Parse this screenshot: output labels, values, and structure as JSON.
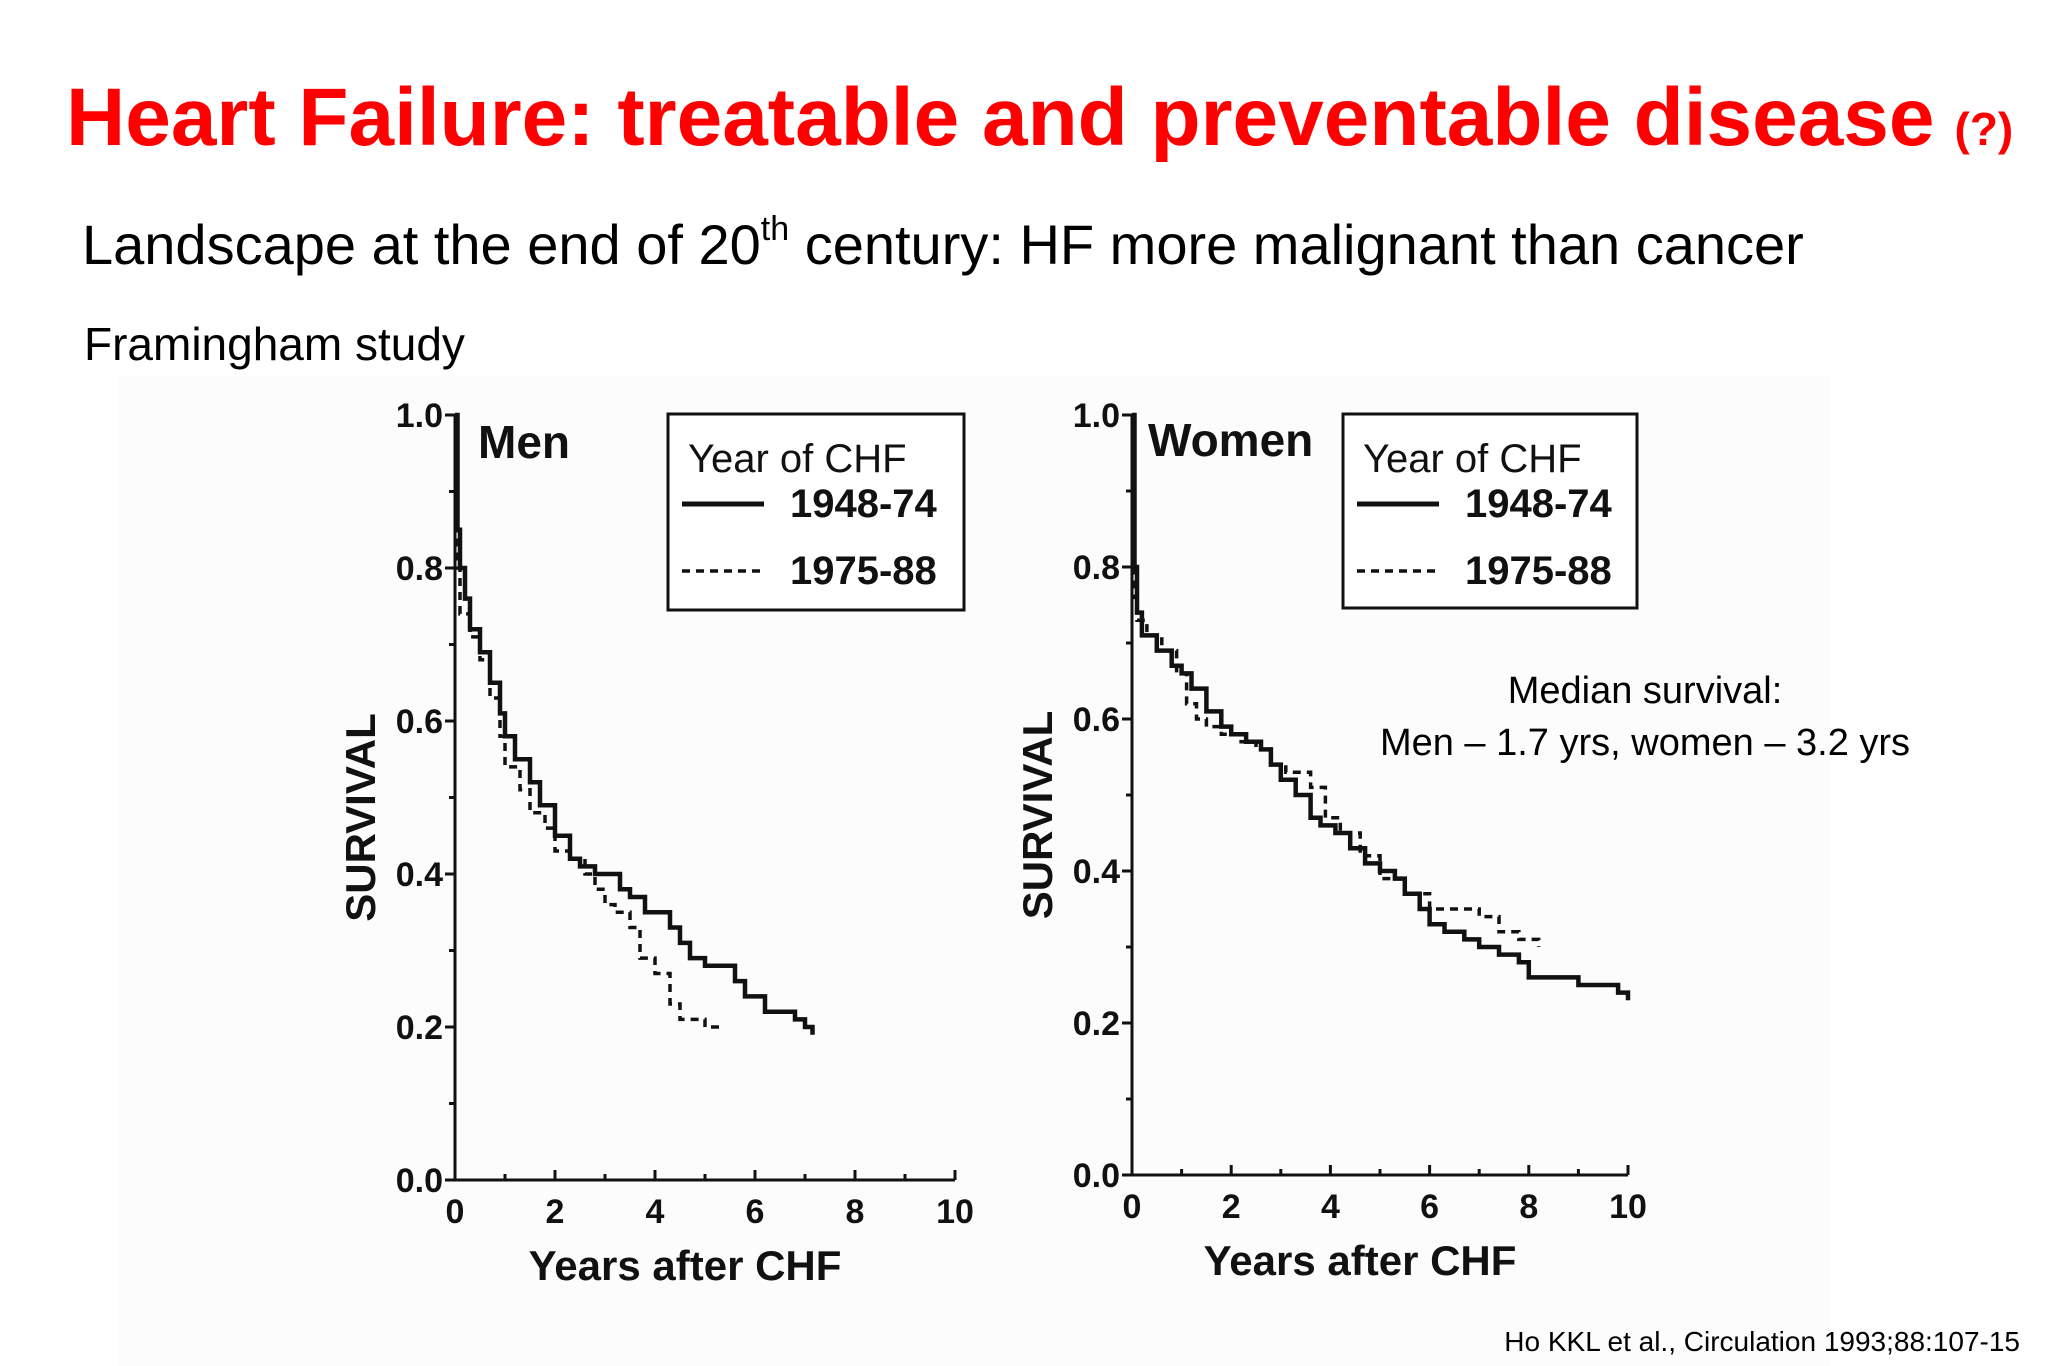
{
  "slide": {
    "title": "Heart Failure: treatable and preventable disease",
    "title_note": "(?)",
    "subtitle_pre": "Landscape at the end of 20",
    "subtitle_sup": "th",
    "subtitle_post": " century: HF more malignant than cancer",
    "study": "Framingham study",
    "median_line1": "Median survival:",
    "median_line2": "Men – 1.7 yrs, women – 3.2 yrs",
    "citation": "Ho KKL et al., Circulation 1993;88:107-15"
  },
  "colors": {
    "title": "#ff0000",
    "text": "#000000",
    "panel": "#fcfcfd",
    "line": "#111111"
  },
  "chart_data": [
    {
      "type": "line",
      "panel_label": "Men",
      "xlabel": "Years after CHF",
      "ylabel": "SURVIVAL",
      "xlim": [
        0,
        10
      ],
      "ylim": [
        0,
        1.0
      ],
      "x_ticks": [
        "0",
        "2",
        "4",
        "6",
        "8",
        "10"
      ],
      "y_ticks": [
        "0.0",
        "0.2",
        "0.4",
        "0.6",
        "0.8",
        "1.0"
      ],
      "legend": {
        "title": "Year of CHF",
        "position": "top-right"
      },
      "series": [
        {
          "name": "1948-74",
          "style": "solid",
          "x": [
            0,
            0.05,
            0.1,
            0.2,
            0.3,
            0.5,
            0.7,
            0.9,
            1.0,
            1.2,
            1.5,
            1.7,
            2.0,
            2.3,
            2.5,
            2.8,
            3.0,
            3.3,
            3.5,
            3.8,
            4.0,
            4.3,
            4.5,
            4.7,
            5.0,
            5.3,
            5.6,
            5.8,
            6.2,
            6.5,
            6.8,
            7.0,
            7.15
          ],
          "y": [
            1.0,
            0.85,
            0.8,
            0.76,
            0.72,
            0.69,
            0.65,
            0.61,
            0.58,
            0.55,
            0.52,
            0.49,
            0.45,
            0.42,
            0.41,
            0.4,
            0.4,
            0.38,
            0.37,
            0.35,
            0.35,
            0.33,
            0.31,
            0.29,
            0.28,
            0.28,
            0.26,
            0.24,
            0.22,
            0.22,
            0.21,
            0.2,
            0.19
          ]
        },
        {
          "name": "1975-88",
          "style": "dashed",
          "x": [
            0,
            0.05,
            0.1,
            0.3,
            0.5,
            0.7,
            0.9,
            1.0,
            1.3,
            1.5,
            1.8,
            2.0,
            2.3,
            2.6,
            2.8,
            3.0,
            3.2,
            3.5,
            3.7,
            4.0,
            4.3,
            4.5,
            4.7,
            5.0,
            5.3
          ],
          "y": [
            1.0,
            0.8,
            0.74,
            0.71,
            0.68,
            0.63,
            0.58,
            0.54,
            0.51,
            0.48,
            0.46,
            0.43,
            0.42,
            0.4,
            0.38,
            0.36,
            0.35,
            0.33,
            0.29,
            0.27,
            0.23,
            0.21,
            0.21,
            0.2,
            0.2
          ]
        }
      ]
    },
    {
      "type": "line",
      "panel_label": "Women",
      "xlabel": "Years after CHF",
      "ylabel": "SURVIVAL",
      "xlim": [
        0,
        10
      ],
      "ylim": [
        0,
        1.0
      ],
      "x_ticks": [
        "0",
        "2",
        "4",
        "6",
        "8",
        "10"
      ],
      "y_ticks": [
        "0.0",
        "0.2",
        "0.4",
        "0.6",
        "0.8",
        "1.0"
      ],
      "legend": {
        "title": "Year of CHF",
        "position": "top-right"
      },
      "series": [
        {
          "name": "1948-74",
          "style": "solid",
          "x": [
            0,
            0.05,
            0.1,
            0.2,
            0.5,
            0.8,
            1.0,
            1.2,
            1.5,
            1.8,
            2.0,
            2.3,
            2.6,
            2.8,
            3.0,
            3.3,
            3.6,
            3.8,
            4.1,
            4.4,
            4.7,
            5.0,
            5.3,
            5.5,
            5.8,
            6.0,
            6.3,
            6.7,
            7.0,
            7.4,
            7.8,
            8.0,
            8.5,
            9.0,
            9.5,
            9.8,
            10.0
          ],
          "y": [
            1.0,
            0.8,
            0.74,
            0.71,
            0.69,
            0.67,
            0.66,
            0.64,
            0.61,
            0.59,
            0.58,
            0.57,
            0.56,
            0.54,
            0.52,
            0.5,
            0.47,
            0.46,
            0.45,
            0.43,
            0.41,
            0.4,
            0.39,
            0.37,
            0.35,
            0.33,
            0.32,
            0.31,
            0.3,
            0.29,
            0.28,
            0.26,
            0.26,
            0.25,
            0.25,
            0.24,
            0.23
          ]
        },
        {
          "name": "1975-88",
          "style": "dashed",
          "x": [
            0,
            0.05,
            0.1,
            0.3,
            0.6,
            0.9,
            1.1,
            1.3,
            1.5,
            1.8,
            2.2,
            2.5,
            2.8,
            3.1,
            3.4,
            3.6,
            3.9,
            4.2,
            4.6,
            5.0,
            5.5,
            6.0,
            6.5,
            7.0,
            7.4,
            7.8,
            8.2
          ],
          "y": [
            1.0,
            0.76,
            0.73,
            0.71,
            0.69,
            0.66,
            0.62,
            0.6,
            0.59,
            0.58,
            0.57,
            0.56,
            0.54,
            0.53,
            0.53,
            0.51,
            0.47,
            0.45,
            0.42,
            0.39,
            0.37,
            0.35,
            0.35,
            0.34,
            0.32,
            0.31,
            0.3
          ]
        }
      ]
    }
  ]
}
